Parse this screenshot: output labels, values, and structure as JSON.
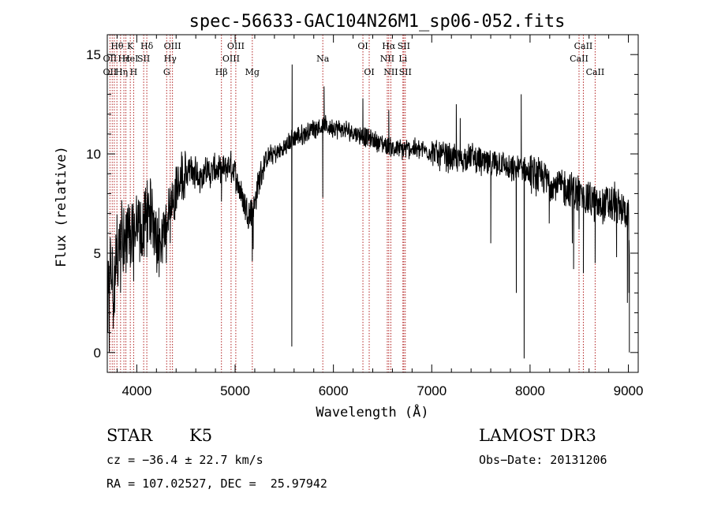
{
  "chart_data": {
    "type": "line",
    "title": "spec-56633-GAC104N26M1_sp06-052.fits",
    "xlabel": "Wavelength (Å)",
    "ylabel": "Flux (relative)",
    "xlim": [
      3700,
      9100
    ],
    "ylim": [
      -1,
      16
    ],
    "xticks": [
      4000,
      5000,
      6000,
      7000,
      8000,
      9000
    ],
    "yticks": [
      0,
      5,
      10,
      15
    ],
    "grid": false,
    "line_color": "#000000",
    "marker_color": "#b22222",
    "anchors": [
      [
        3700,
        1.5
      ],
      [
        3720,
        4.5
      ],
      [
        3760,
        3.5
      ],
      [
        3800,
        5.0
      ],
      [
        3850,
        6.0
      ],
      [
        3900,
        5.5
      ],
      [
        3950,
        6.0
      ],
      [
        4000,
        6.5
      ],
      [
        4050,
        5.8
      ],
      [
        4100,
        6.8
      ],
      [
        4150,
        7.2
      ],
      [
        4200,
        6.0
      ],
      [
        4250,
        5.5
      ],
      [
        4300,
        6.8
      ],
      [
        4350,
        7.5
      ],
      [
        4400,
        8.2
      ],
      [
        4450,
        8.8
      ],
      [
        4500,
        9.0
      ],
      [
        4550,
        9.2
      ],
      [
        4600,
        9.0
      ],
      [
        4650,
        8.8
      ],
      [
        4700,
        9.2
      ],
      [
        4750,
        9.0
      ],
      [
        4800,
        9.3
      ],
      [
        4850,
        9.0
      ],
      [
        4900,
        9.3
      ],
      [
        4950,
        9.4
      ],
      [
        5000,
        9.0
      ],
      [
        5050,
        8.2
      ],
      [
        5100,
        7.4
      ],
      [
        5150,
        7.0
      ],
      [
        5200,
        7.5
      ],
      [
        5250,
        8.8
      ],
      [
        5300,
        9.6
      ],
      [
        5350,
        9.9
      ],
      [
        5400,
        10.0
      ],
      [
        5450,
        10.1
      ],
      [
        5500,
        10.3
      ],
      [
        5550,
        10.6
      ],
      [
        5600,
        10.8
      ],
      [
        5700,
        11.0
      ],
      [
        5800,
        11.3
      ],
      [
        5900,
        11.4
      ],
      [
        6000,
        11.3
      ],
      [
        6100,
        11.2
      ],
      [
        6200,
        11.1
      ],
      [
        6300,
        10.9
      ],
      [
        6400,
        10.7
      ],
      [
        6500,
        10.5
      ],
      [
        6600,
        10.3
      ],
      [
        6700,
        10.2
      ],
      [
        6800,
        10.3
      ],
      [
        6900,
        10.2
      ],
      [
        7000,
        10.1
      ],
      [
        7100,
        9.9
      ],
      [
        7200,
        9.8
      ],
      [
        7300,
        9.7
      ],
      [
        7400,
        9.9
      ],
      [
        7500,
        9.6
      ],
      [
        7600,
        9.4
      ],
      [
        7700,
        9.6
      ],
      [
        7800,
        9.1
      ],
      [
        7900,
        9.3
      ],
      [
        8000,
        9.0
      ],
      [
        8100,
        8.8
      ],
      [
        8200,
        8.6
      ],
      [
        8300,
        8.4
      ],
      [
        8400,
        8.2
      ],
      [
        8500,
        8.0
      ],
      [
        8600,
        7.7
      ],
      [
        8700,
        7.4
      ],
      [
        8800,
        7.5
      ],
      [
        8900,
        7.3
      ],
      [
        9000,
        7.0
      ],
      [
        9010,
        5.5
      ]
    ],
    "features": [
      [
        3720,
        0.0
      ],
      [
        3760,
        1.2
      ],
      [
        3775,
        2.0
      ],
      [
        3835,
        3.0
      ],
      [
        3890,
        4.0
      ],
      [
        3934,
        4.3
      ],
      [
        3968,
        3.6
      ],
      [
        4102,
        4.8
      ],
      [
        4227,
        3.8
      ],
      [
        4300,
        4.5
      ],
      [
        4340,
        5.5
      ],
      [
        4861,
        7.6
      ],
      [
        5175,
        4.6
      ],
      [
        5184,
        5.2
      ],
      [
        5577,
        0.3
      ],
      [
        5580,
        14.5
      ],
      [
        5892,
        7.8
      ],
      [
        5905,
        13.4
      ],
      [
        6300,
        12.8
      ],
      [
        6563,
        12.2
      ],
      [
        7250,
        12.5
      ],
      [
        7290,
        11.8
      ],
      [
        7600,
        5.5
      ],
      [
        7860,
        3.0
      ],
      [
        7910,
        13.0
      ],
      [
        7940,
        -0.3
      ],
      [
        8183,
        9.0
      ],
      [
        8195,
        6.5
      ],
      [
        8430,
        5.5
      ],
      [
        8443,
        4.2
      ],
      [
        8498,
        6.2
      ],
      [
        8542,
        4.0
      ],
      [
        8662,
        4.5
      ],
      [
        8860,
        8.6
      ],
      [
        8880,
        4.8
      ],
      [
        8990,
        2.5
      ],
      [
        9000,
        7.5
      ],
      [
        9005,
        3.0
      ],
      [
        9010,
        0.0
      ]
    ],
    "marker_lines": [
      3727,
      3750,
      3771,
      3798,
      3835,
      3869,
      3889,
      3934,
      3968,
      4070,
      4102,
      4304,
      4340,
      4363,
      4861,
      4959,
      5007,
      5175,
      5892,
      6300,
      6364,
      6548,
      6563,
      6584,
      6707,
      6716,
      6731,
      8498,
      8542,
      8662
    ],
    "line_labels": [
      {
        "text": "Hθ",
        "x": 3800,
        "row": 1
      },
      {
        "text": "K",
        "x": 3934,
        "row": 1
      },
      {
        "text": "Hδ",
        "x": 4102,
        "row": 1
      },
      {
        "text": "OIII",
        "x": 4363,
        "row": 1
      },
      {
        "text": "OIII",
        "x": 5007,
        "row": 1
      },
      {
        "text": "OI",
        "x": 6300,
        "row": 1
      },
      {
        "text": "Hα",
        "x": 6563,
        "row": 1
      },
      {
        "text": "SII",
        "x": 6716,
        "row": 1
      },
      {
        "text": "CaII",
        "x": 8542,
        "row": 1
      },
      {
        "text": "OII",
        "x": 3727,
        "row": 2
      },
      {
        "text": "Hε",
        "x": 3870,
        "row": 2
      },
      {
        "text": "HeI",
        "x": 3935,
        "row": 2
      },
      {
        "text": "SII",
        "x": 4070,
        "row": 2
      },
      {
        "text": "Hγ",
        "x": 4340,
        "row": 2
      },
      {
        "text": "OIII",
        "x": 4959,
        "row": 2
      },
      {
        "text": "Na",
        "x": 5892,
        "row": 2
      },
      {
        "text": "NII",
        "x": 6548,
        "row": 2
      },
      {
        "text": "Li",
        "x": 6707,
        "row": 2
      },
      {
        "text": "CaII",
        "x": 8498,
        "row": 2
      },
      {
        "text": "OII",
        "x": 3727,
        "row": 3
      },
      {
        "text": "Hη",
        "x": 3845,
        "row": 3
      },
      {
        "text": "H",
        "x": 3968,
        "row": 3
      },
      {
        "text": "G",
        "x": 4304,
        "row": 3
      },
      {
        "text": "Hβ",
        "x": 4861,
        "row": 3
      },
      {
        "text": "Mg",
        "x": 5175,
        "row": 3
      },
      {
        "text": "OI",
        "x": 6364,
        "row": 3
      },
      {
        "text": "NII",
        "x": 6584,
        "row": 3
      },
      {
        "text": "SII",
        "x": 6731,
        "row": 3
      },
      {
        "text": "CaII",
        "x": 8662,
        "row": 3
      }
    ]
  },
  "info": {
    "object_class": "STAR",
    "subclass": "K5",
    "survey": "LAMOST DR3",
    "cz": "cz = −36.4 ± 22.7 km/s",
    "obs_date": "Obs−Date: 20131206",
    "coords": "RA = 107.02527, DEC =  25.97942"
  }
}
